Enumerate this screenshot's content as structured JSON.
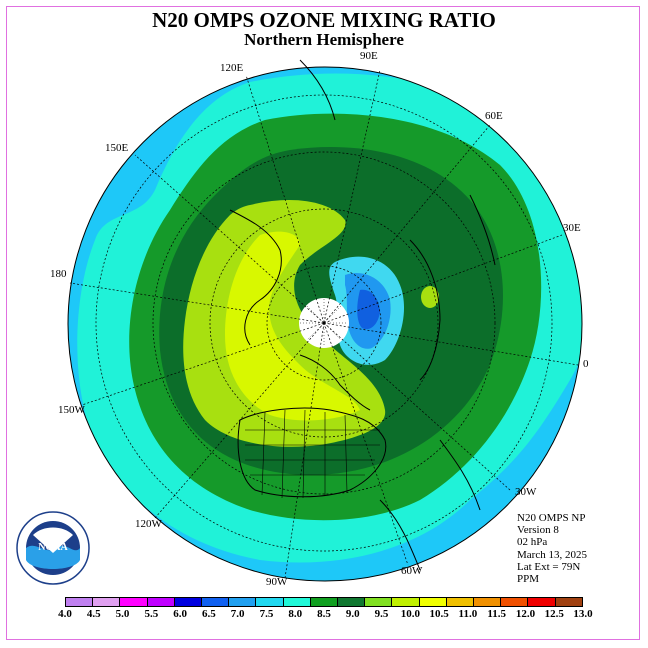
{
  "title": "N20 OMPS OZONE MIXING RATIO",
  "subtitle": "Northern Hemisphere",
  "longitude_labels": {
    "e90": "90E",
    "e60": "60E",
    "e30": "30E",
    "zero": "0",
    "e120": "120E",
    "e150": "150E",
    "d180": "180",
    "w150": "150W",
    "w120": "120W",
    "w90": "90W",
    "w60": "60W",
    "w30": "30W"
  },
  "info": {
    "line1": "N20 OMPS NP",
    "line2": "Version 8",
    "line3": "02 hPa",
    "line4": "March 13, 2025",
    "line5": "Lat Ext = 79N",
    "line6": "PPM"
  },
  "logo": {
    "text": "NOAA",
    "ring_text": "NATIONAL OCEANIC AND ATMOSPHERIC ADMINISTRATION · U.S. DEPARTMENT OF COMMERCE"
  },
  "colorbar": {
    "ticks": [
      "4.0",
      "4.5",
      "5.0",
      "5.5",
      "6.0",
      "6.5",
      "7.0",
      "7.5",
      "8.0",
      "8.5",
      "9.0",
      "9.5",
      "10.0",
      "10.5",
      "11.0",
      "11.5",
      "12.0",
      "12.5",
      "13.0"
    ],
    "colors": [
      "#c080f0",
      "#e0a0f0",
      "#ff00ff",
      "#c000ff",
      "#0000e0",
      "#1060f0",
      "#20a0f0",
      "#20d8f0",
      "#20f8d8",
      "#10a020",
      "#107830",
      "#80e020",
      "#c0f000",
      "#f0ff00",
      "#f0c000",
      "#f09000",
      "#f05000",
      "#f00000",
      "#a04010"
    ]
  },
  "map_colors": {
    "outer": "#1ec8f8",
    "ring1": "#20f2d8",
    "ring2": "#159a2a",
    "ring3": "#0c6e2a",
    "high1": "#a8e010",
    "high2": "#d8f800",
    "low1": "#40d8f0",
    "low2": "#2098f0",
    "low3": "#1060e0",
    "polar_cap": "#ffffff"
  }
}
